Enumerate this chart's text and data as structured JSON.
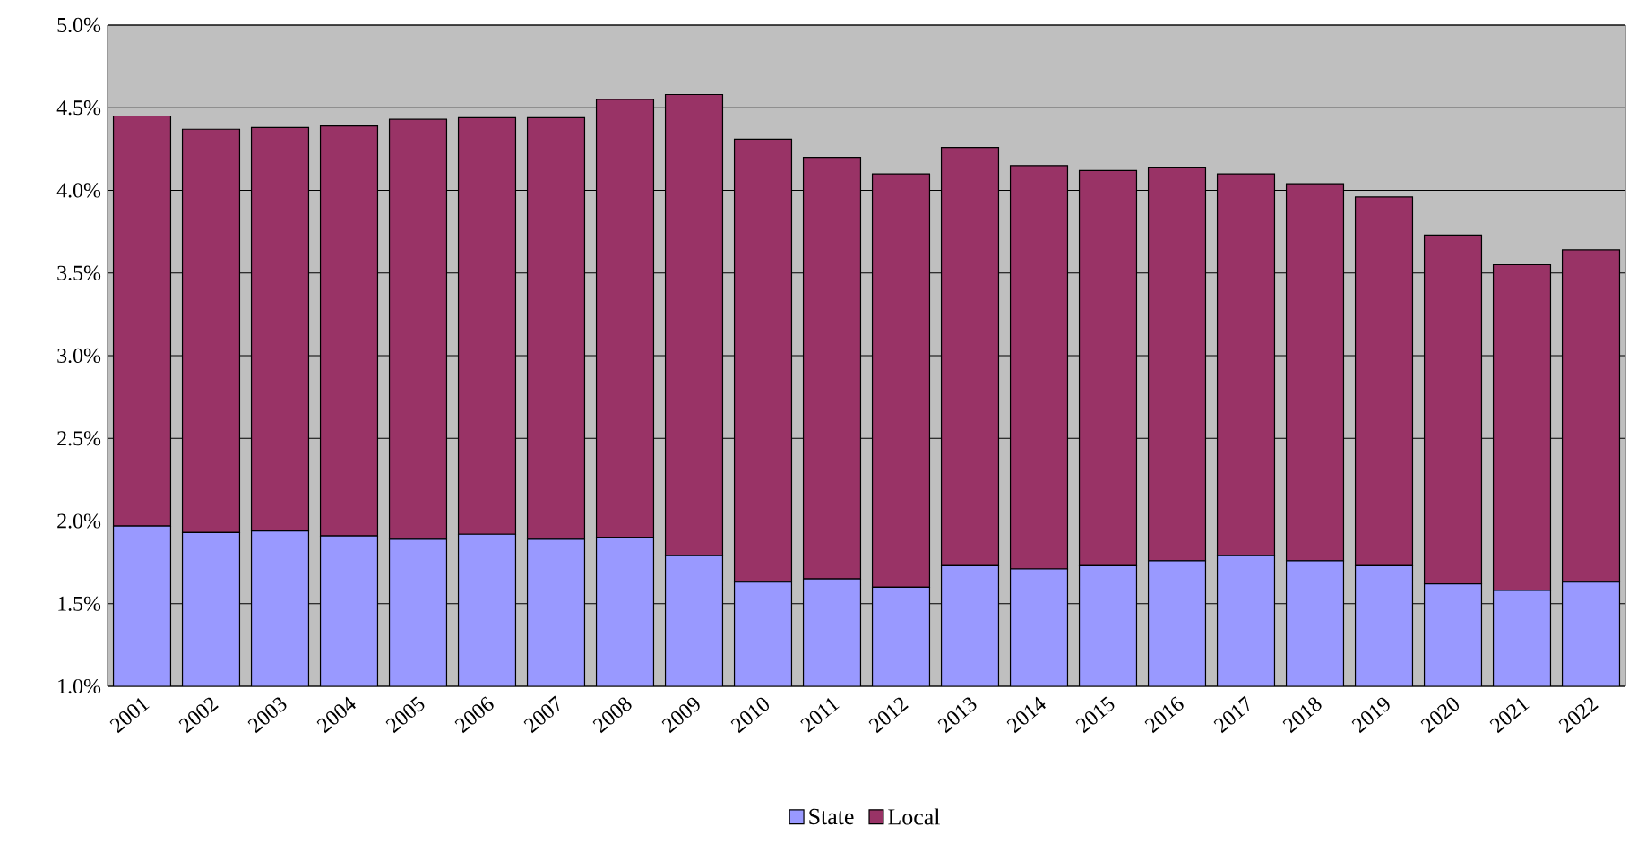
{
  "chart_data": {
    "type": "bar",
    "stacked": true,
    "categories": [
      "2001",
      "2002",
      "2003",
      "2004",
      "2005",
      "2006",
      "2007",
      "2008",
      "2009",
      "2010",
      "2011",
      "2012",
      "2013",
      "2014",
      "2015",
      "2016",
      "2017",
      "2018",
      "2019",
      "2020",
      "2021",
      "2022"
    ],
    "series": [
      {
        "name": "State",
        "color": "#9999ff",
        "values": [
          1.97,
          1.93,
          1.94,
          1.91,
          1.89,
          1.92,
          1.89,
          1.9,
          1.79,
          1.63,
          1.65,
          1.6,
          1.73,
          1.71,
          1.73,
          1.76,
          1.79,
          1.76,
          1.73,
          1.62,
          1.58,
          1.63
        ]
      },
      {
        "name": "Local",
        "color": "#993366",
        "values": [
          2.48,
          2.44,
          2.44,
          2.48,
          2.54,
          2.52,
          2.55,
          2.65,
          2.79,
          2.68,
          2.55,
          2.5,
          2.53,
          2.44,
          2.39,
          2.38,
          2.31,
          2.28,
          2.23,
          2.11,
          1.97,
          2.01
        ]
      }
    ],
    "ylim": [
      1.0,
      5.0
    ],
    "yticks": [
      {
        "value": 1.0,
        "label": "1.0%"
      },
      {
        "value": 1.5,
        "label": "1.5%"
      },
      {
        "value": 2.0,
        "label": "2.0%"
      },
      {
        "value": 2.5,
        "label": "2.5%"
      },
      {
        "value": 3.0,
        "label": "3.0%"
      },
      {
        "value": 3.5,
        "label": "3.5%"
      },
      {
        "value": 4.0,
        "label": "4.0%"
      },
      {
        "value": 4.5,
        "label": "4.5%"
      },
      {
        "value": 5.0,
        "label": "5.0%"
      }
    ],
    "grid": "y",
    "legend": "bottom"
  }
}
